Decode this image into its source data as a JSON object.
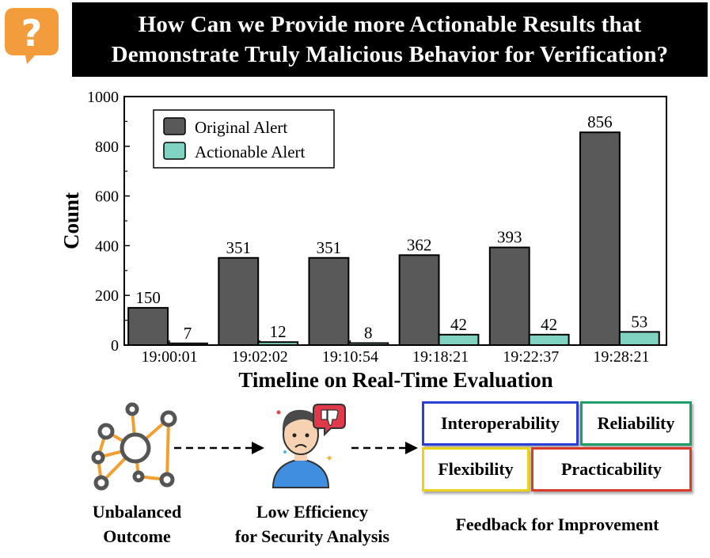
{
  "header": {
    "title_line1": "How Can we Provide more Actionable Results that",
    "title_line2": "Demonstrate Truly Malicious Behavior for Verification?",
    "icon": "question-bubble-icon",
    "icon_color": "#f39c3c"
  },
  "chart_data": {
    "type": "bar",
    "categories": [
      "19:00:01",
      "19:02:02",
      "19:10:54",
      "19:18:21",
      "19:22:37",
      "19:28:21"
    ],
    "series": [
      {
        "name": "Original Alert",
        "values": [
          150,
          351,
          351,
          362,
          393,
          856
        ],
        "color": "#595959"
      },
      {
        "name": "Actionable Alert",
        "values": [
          7,
          12,
          8,
          42,
          42,
          53
        ],
        "color": "#7fd3c0"
      }
    ],
    "xlabel": "Timeline on Real-Time Evaluation",
    "ylabel": "Count",
    "ylim": [
      0,
      1000
    ],
    "yticks": [
      0,
      200,
      400,
      600,
      800,
      1000
    ],
    "grid": false,
    "legend": "top-left"
  },
  "bottom": {
    "outcome_label_line1": "Unbalanced",
    "outcome_label_line2": "Outcome",
    "analyst_label_line1": "Low Efficiency",
    "analyst_label_line2": "for Security Analysis",
    "feedback_title": "Feedback for Improvement",
    "boxes": {
      "interoperability": {
        "label": "Interoperability",
        "color": "#2b3fd6"
      },
      "reliability": {
        "label": "Reliability",
        "color": "#1f9e6a"
      },
      "flexibility": {
        "label": "Flexibility",
        "color": "#e8d21a"
      },
      "practicability": {
        "label": "Practicability",
        "color": "#dc3a2a"
      }
    },
    "icons": [
      "network-graph-icon",
      "frustrated-analyst-icon",
      "thumbs-down-icon"
    ]
  }
}
